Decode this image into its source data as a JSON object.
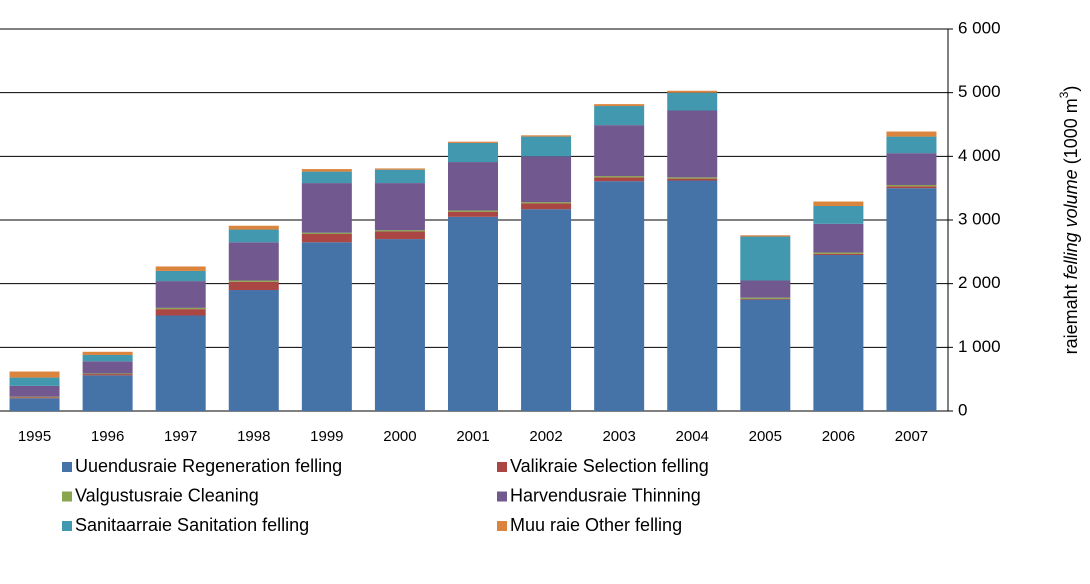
{
  "chart_data": {
    "type": "stacked-bar",
    "y_label": {
      "parts": [
        "raiemaht ",
        "felling volume",
        " (1000 m",
        "3",
        ")"
      ]
    },
    "categories": [
      "1995",
      "1996",
      "1997",
      "1998",
      "1999",
      "2000",
      "2001",
      "2002",
      "2003",
      "2004",
      "2005",
      "2006",
      "2007"
    ],
    "series": [
      {
        "name": "Uuendusraie Regeneration felling",
        "color": "#4572a7",
        "values": [
          200,
          560,
          1500,
          1900,
          2650,
          2700,
          3050,
          3170,
          3610,
          3620,
          1750,
          2450,
          3500
        ]
      },
      {
        "name": "Valikraie Selection felling",
        "color": "#aa4643",
        "values": [
          15,
          20,
          100,
          130,
          130,
          120,
          80,
          90,
          60,
          30,
          10,
          20,
          30
        ]
      },
      {
        "name": "Valgustusraie Cleaning",
        "color": "#89a54e",
        "values": [
          10,
          10,
          20,
          20,
          20,
          20,
          20,
          20,
          20,
          20,
          20,
          20,
          20
        ]
      },
      {
        "name": "Harvendusraie Thinning",
        "color": "#71588f",
        "values": [
          170,
          190,
          420,
          600,
          780,
          740,
          760,
          720,
          800,
          1050,
          270,
          450,
          500
        ]
      },
      {
        "name": "Sanitaarraie Sanitation felling",
        "color": "#4198af",
        "values": [
          130,
          100,
          160,
          200,
          180,
          210,
          300,
          310,
          300,
          280,
          690,
          280,
          260
        ]
      },
      {
        "name": "Muu raie Other felling",
        "color": "#db843d",
        "values": [
          95,
          50,
          70,
          60,
          40,
          20,
          20,
          20,
          30,
          30,
          20,
          70,
          80
        ]
      }
    ],
    "ylim": [
      0,
      6000
    ],
    "yticks": [
      0,
      {
        "value": 1000,
        "label": "1 000"
      },
      {
        "value": 2000,
        "label": "2 000"
      },
      {
        "value": 3000,
        "label": "3 000"
      },
      {
        "value": 4000,
        "label": "4 000"
      },
      {
        "value": 5000,
        "label": "5 000"
      },
      {
        "value": 6000,
        "label": "6 000"
      }
    ],
    "grid": true
  }
}
